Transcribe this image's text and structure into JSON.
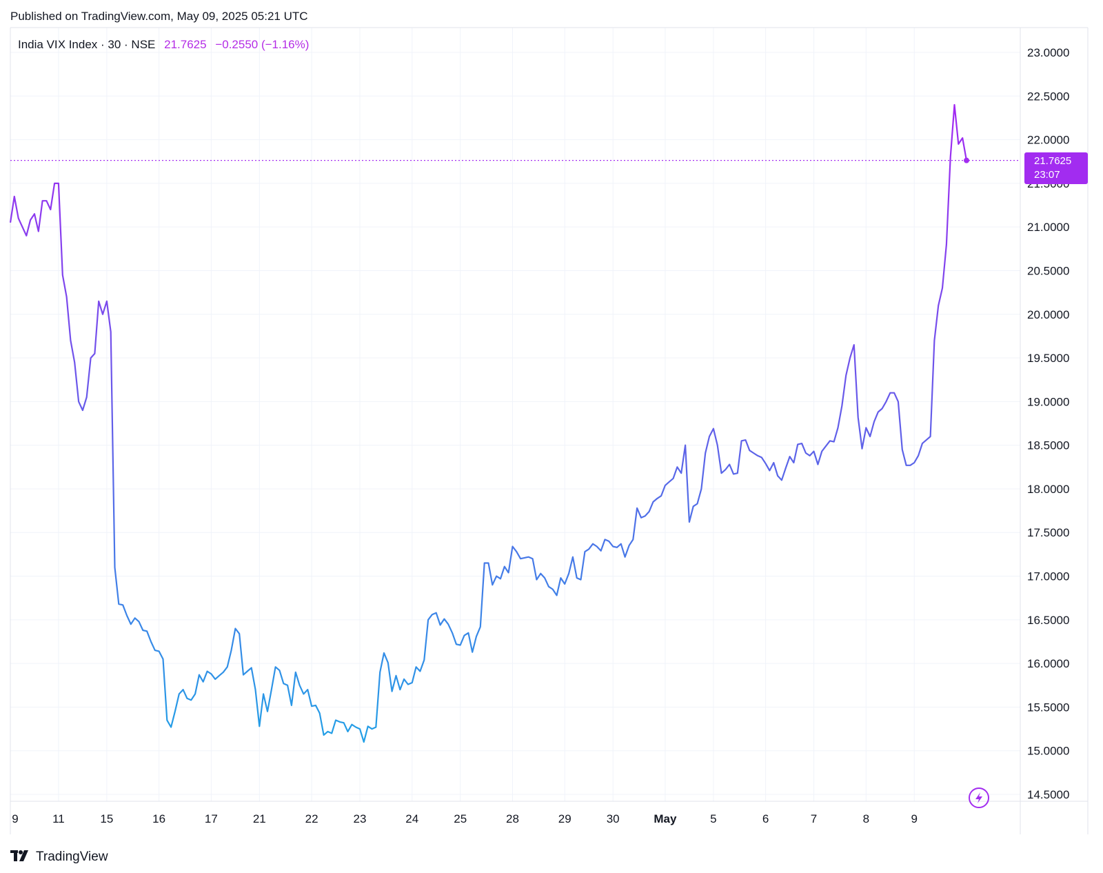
{
  "header": {
    "published": "Published on TradingView.com, May 09, 2025 05:21 UTC"
  },
  "legend": {
    "symbol": "India VIX Index · 30 · NSE",
    "last": "21.7625",
    "change": "−0.2550 (−1.16%)"
  },
  "price_tag": {
    "price": "21.7625",
    "countdown": "23:07"
  },
  "footer": {
    "brand": "TradingView"
  },
  "colors": {
    "line_start": "#1ea3e6",
    "line_mid": "#5b64e8",
    "line_end": "#a426f2",
    "accent": "#a22cf0",
    "grid": "#f0f3fa"
  },
  "icons": {
    "lightning": "lightning-icon",
    "logo": "tradingview-logo-icon"
  },
  "chart_data": {
    "type": "line",
    "title": "India VIX Index · 30 · NSE",
    "xlabel": "",
    "ylabel": "",
    "ylim": [
      14.5,
      23.0
    ],
    "y_ticks": [
      "23.0000",
      "22.5000",
      "22.0000",
      "21.5000",
      "21.0000",
      "20.5000",
      "20.0000",
      "19.5000",
      "19.0000",
      "18.5000",
      "18.0000",
      "17.5000",
      "17.0000",
      "16.5000",
      "16.0000",
      "15.5000",
      "15.0000",
      "14.5000"
    ],
    "x_ticks": [
      {
        "label": "9",
        "index": 0
      },
      {
        "label": "11",
        "index": 12
      },
      {
        "label": "15",
        "index": 24
      },
      {
        "label": "16",
        "index": 37
      },
      {
        "label": "17",
        "index": 50
      },
      {
        "label": "21",
        "index": 62
      },
      {
        "label": "22",
        "index": 75
      },
      {
        "label": "23",
        "index": 87
      },
      {
        "label": "24",
        "index": 100
      },
      {
        "label": "25",
        "index": 112
      },
      {
        "label": "28",
        "index": 125
      },
      {
        "label": "29",
        "index": 138
      },
      {
        "label": "30",
        "index": 150
      },
      {
        "label": "May",
        "index": 163,
        "bold": true
      },
      {
        "label": "5",
        "index": 175
      },
      {
        "label": "6",
        "index": 188
      },
      {
        "label": "7",
        "index": 200
      },
      {
        "label": "8",
        "index": 213
      },
      {
        "label": "9",
        "index": 225
      }
    ],
    "last_value": 21.7625,
    "series": [
      {
        "values": [
          21.05,
          21.35,
          21.1,
          21.0,
          20.9,
          21.08,
          21.15,
          20.95,
          21.3,
          21.3,
          21.2,
          21.5,
          21.5,
          20.45,
          20.2,
          19.7,
          19.45,
          19.0,
          18.9,
          19.05,
          19.5,
          19.55,
          20.15,
          20.0,
          20.15,
          19.8,
          17.1,
          16.68,
          16.67,
          16.55,
          16.45,
          16.52,
          16.48,
          16.38,
          16.37,
          16.25,
          16.15,
          16.14,
          16.05,
          15.35,
          15.27,
          15.45,
          15.65,
          15.7,
          15.6,
          15.58,
          15.65,
          15.87,
          15.79,
          15.91,
          15.88,
          15.82,
          15.86,
          15.9,
          15.96,
          16.15,
          16.4,
          16.34,
          15.87,
          15.91,
          15.95,
          15.7,
          15.28,
          15.65,
          15.45,
          15.7,
          15.96,
          15.92,
          15.77,
          15.75,
          15.52,
          15.9,
          15.75,
          15.65,
          15.7,
          15.51,
          15.52,
          15.43,
          15.18,
          15.22,
          15.2,
          15.35,
          15.33,
          15.32,
          15.22,
          15.3,
          15.27,
          15.25,
          15.1,
          15.28,
          15.25,
          15.27,
          15.9,
          16.12,
          16.01,
          15.68,
          15.86,
          15.7,
          15.82,
          15.76,
          15.78,
          15.96,
          15.91,
          16.04,
          16.5,
          16.56,
          16.58,
          16.44,
          16.51,
          16.45,
          16.35,
          16.22,
          16.21,
          16.32,
          16.35,
          16.13,
          16.31,
          16.42,
          17.15,
          17.15,
          16.9,
          17.0,
          16.97,
          17.11,
          17.04,
          17.34,
          17.28,
          17.2,
          17.21,
          17.22,
          17.2,
          16.96,
          17.03,
          16.98,
          16.88,
          16.85,
          16.78,
          16.98,
          16.91,
          17.03,
          17.22,
          16.98,
          16.96,
          17.28,
          17.31,
          17.37,
          17.34,
          17.29,
          17.42,
          17.4,
          17.34,
          17.33,
          17.37,
          17.22,
          17.35,
          17.42,
          17.78,
          17.67,
          17.69,
          17.74,
          17.85,
          17.89,
          17.92,
          18.04,
          18.08,
          18.12,
          18.25,
          18.18,
          18.5,
          17.62,
          17.8,
          17.83,
          18.0,
          18.41,
          18.6,
          18.69,
          18.5,
          18.18,
          18.22,
          18.28,
          18.17,
          18.18,
          18.55,
          18.56,
          18.44,
          18.41,
          18.38,
          18.36,
          18.29,
          18.21,
          18.3,
          18.15,
          18.1,
          18.24,
          18.37,
          18.3,
          18.51,
          18.52,
          18.41,
          18.38,
          18.43,
          18.28,
          18.43,
          18.49,
          18.55,
          18.54,
          18.7,
          18.95,
          19.3,
          19.5,
          19.65,
          18.82,
          18.46,
          18.7,
          18.6,
          18.77,
          18.88,
          18.92,
          19.0,
          19.1,
          19.1,
          19.0,
          18.45,
          18.27,
          18.27,
          18.3,
          18.38,
          18.52,
          18.56,
          18.6,
          19.7,
          20.1,
          20.3,
          20.8,
          21.8,
          22.4,
          21.95,
          22.02,
          21.7625
        ]
      }
    ]
  }
}
